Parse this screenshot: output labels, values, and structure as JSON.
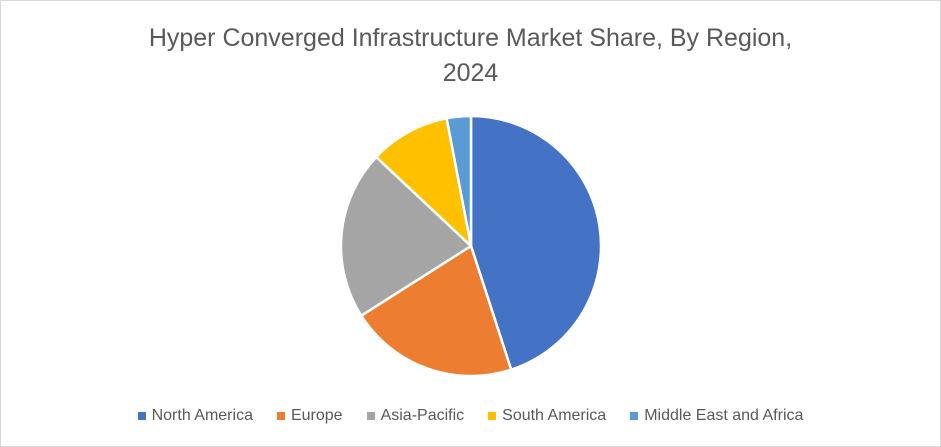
{
  "chart_data": {
    "type": "pie",
    "title": "Hyper Converged Infrastructure Market Share, By Region, 2024",
    "title_lines": [
      "Hyper Converged Infrastructure Market Share, By Region,",
      "2024"
    ],
    "categories": [
      "North America",
      "Europe",
      "Asia-Pacific",
      "South America",
      "Middle East and Africa"
    ],
    "values": [
      45,
      21,
      21,
      10,
      3
    ],
    "unit": "%",
    "colors": [
      "#4472C4",
      "#ED7D31",
      "#A5A5A5",
      "#FFC000",
      "#5B9BD5"
    ],
    "legend_position": "bottom"
  }
}
